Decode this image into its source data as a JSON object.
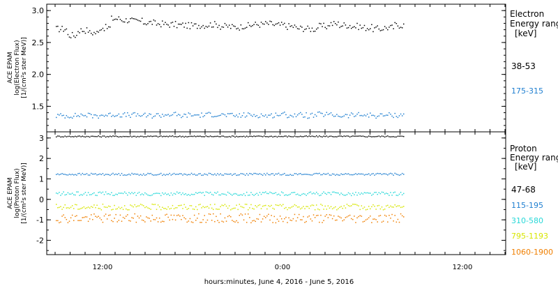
{
  "chart_data": [
    {
      "type": "scatter",
      "panel": "electron",
      "ylabel_lines": [
        "ACE EPAM",
        "log(Electron Flux)",
        "[1/(cm²s ster MeV)]"
      ],
      "legend_title": [
        "Electron",
        "Energy range",
        "[keV]"
      ],
      "ylim": [
        1.1,
        3.1
      ],
      "yticks": [
        "1.5",
        "2.0",
        "2.5",
        "3.0"
      ],
      "ytick_values": [
        1.5,
        2.0,
        2.5,
        3.0
      ],
      "grid": false,
      "legend_position": "right",
      "series": [
        {
          "name": "38-53",
          "color": "#000000",
          "base": 2.78,
          "spread": 0.05,
          "values": [
            2.72,
            2.62,
            2.7,
            2.66,
            2.74,
            2.88,
            2.86,
            2.84,
            2.82,
            2.8,
            2.79,
            2.78,
            2.77,
            2.78,
            2.79,
            2.76,
            2.75,
            2.77,
            2.79,
            2.8,
            2.78,
            2.76,
            2.73,
            2.72,
            2.76,
            2.8,
            2.78,
            2.76,
            2.74,
            2.72,
            2.74,
            2.78
          ]
        },
        {
          "name": "175-315",
          "color": "#1f7fd0",
          "base": 1.37,
          "spread": 0.04,
          "values": [
            1.36,
            1.36,
            1.37,
            1.36,
            1.37,
            1.38,
            1.37,
            1.37,
            1.36,
            1.37,
            1.38,
            1.36,
            1.37,
            1.37,
            1.38,
            1.37,
            1.36,
            1.37,
            1.37,
            1.36,
            1.38,
            1.37,
            1.37,
            1.36,
            1.38,
            1.37,
            1.36,
            1.37,
            1.37,
            1.36,
            1.37,
            1.37
          ]
        }
      ]
    },
    {
      "type": "scatter",
      "panel": "proton",
      "ylabel_lines": [
        "ACE EPAM",
        "log(Proton Flux)",
        "[1/(cm²s ster MeV)]"
      ],
      "legend_title": [
        "Proton",
        "Energy range",
        "[keV]"
      ],
      "ylim": [
        -2.7,
        3.3
      ],
      "yticks": [
        "3",
        "2",
        "1",
        "0",
        "-1",
        "-2"
      ],
      "ytick_values": [
        3,
        2,
        1,
        0,
        -1,
        -2
      ],
      "grid": false,
      "legend_position": "right",
      "series": [
        {
          "name": "47-68",
          "color": "#000000",
          "base": 3.1,
          "spread": 0.03
        },
        {
          "name": "115-195",
          "color": "#1f7fd0",
          "base": 1.25,
          "spread": 0.05
        },
        {
          "name": "310-580",
          "color": "#27d8d8",
          "base": 0.3,
          "spread": 0.09
        },
        {
          "name": "795-1193",
          "color": "#d7e600",
          "base": -0.35,
          "spread": 0.14
        },
        {
          "name": "1060-1900",
          "color": "#f07f00",
          "base": -0.9,
          "spread": 0.22
        }
      ]
    }
  ],
  "x_axis": {
    "ticks": [
      "12:00",
      "0:00",
      "12:00"
    ],
    "xlabel": "hours:minutes, June  4, 2016 - June  5, 2016"
  }
}
